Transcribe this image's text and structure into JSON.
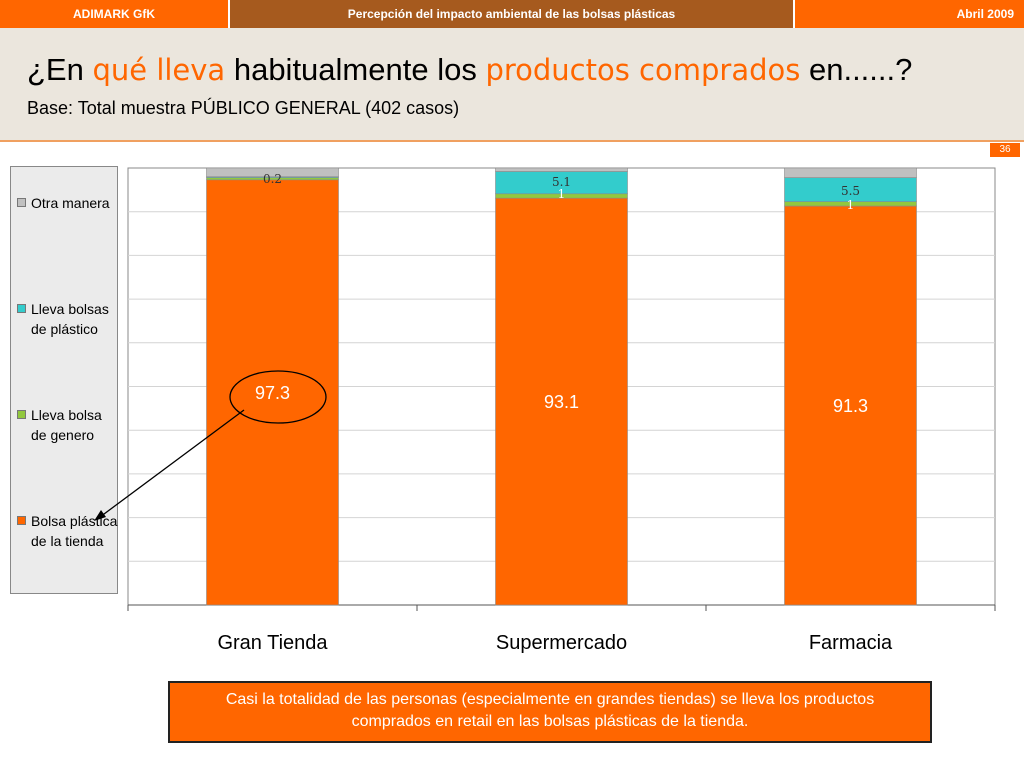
{
  "topbar": {
    "left": "ADIMARK GfK",
    "center": "Percepción del impacto ambiental de las bolsas plásticas",
    "right": "Abril 2009"
  },
  "title": {
    "part1": "¿En ",
    "highlight1": "qué lleva",
    "part2": " habitualmente los ",
    "highlight2": "productos comprados",
    "part3": " en......?"
  },
  "subtitle": "Base: Total muestra PÚBLICO GENERAL (402 casos)",
  "page_number": "36",
  "chart_data": {
    "type": "bar",
    "stacked": true,
    "categories": [
      "Gran Tienda",
      "Supermercado",
      "Farmacia"
    ],
    "series": [
      {
        "name": "Bolsa plástica de la tienda",
        "color": "#ff6600",
        "values": [
          97.3,
          93.1,
          91.3
        ],
        "labels": [
          "97.3",
          "93.1",
          "91.3"
        ]
      },
      {
        "name": "Lleva bolsa de genero",
        "color": "#92c83e",
        "values": [
          0.5,
          1,
          1
        ],
        "labels": [
          "",
          "1",
          "1"
        ]
      },
      {
        "name": "Lleva bolsas de plástico",
        "color": "#33cccc",
        "values": [
          0.2,
          5.1,
          5.5
        ],
        "labels": [
          "0.2",
          "5.1",
          "5.5"
        ]
      },
      {
        "name": "Otra manera",
        "color": "#c0c0c0",
        "values": [
          2.0,
          0.8,
          2.2
        ],
        "labels": [
          "",
          "",
          ""
        ]
      }
    ],
    "ylim": [
      0,
      100
    ],
    "grid": true,
    "legend_position": "left"
  },
  "legend": [
    {
      "label": "Otra manera",
      "color": "#c0c0c0"
    },
    {
      "label": "Lleva bolsas de plástico",
      "color": "#33cccc"
    },
    {
      "label": "Lleva bolsa de genero",
      "color": "#92c83e"
    },
    {
      "label": "Bolsa plástica de la tienda",
      "color": "#ff6600"
    }
  ],
  "note": "Casi la totalidad de las personas (especialmente en grandes tiendas) se lleva los productos comprados en retail en las bolsas plásticas de la tienda."
}
